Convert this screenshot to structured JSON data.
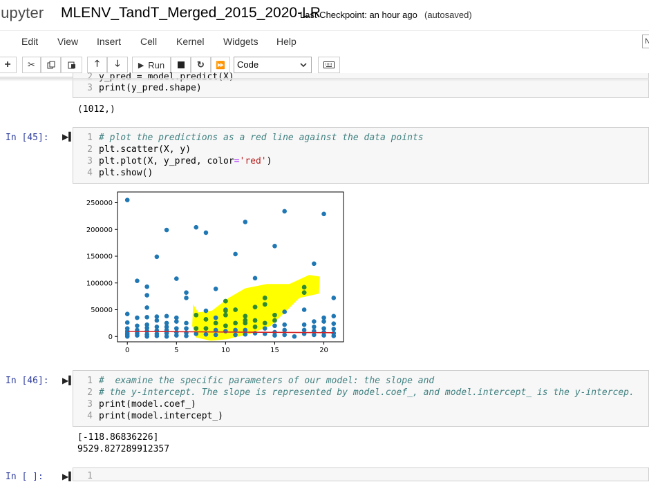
{
  "header": {
    "logo": "jupyter",
    "notebook_title": "MLENV_TandT_Merged_2015_2020-LR",
    "checkpoint": "Last Checkpoint: an hour ago",
    "autosave": "(autosaved)"
  },
  "menu": [
    "Edit",
    "View",
    "Insert",
    "Cell",
    "Kernel",
    "Widgets",
    "Help"
  ],
  "kernel_indicator": "N",
  "toolbar": {
    "run_label": "Run",
    "cell_type": "Code",
    "icons": [
      "plus-icon",
      "cut-icon",
      "copy-icon",
      "paste-icon",
      "arrow-up-icon",
      "arrow-down-icon",
      "run-icon",
      "stop-icon",
      "restart-icon",
      "fast-forward-icon",
      "chevron-down-icon",
      "keyboard-icon"
    ]
  },
  "cells": {
    "prev": {
      "line2_num": "2",
      "line2": "y_pred = model.predict(X)",
      "line3_num": "3",
      "line3": "print(y_pred.shape)",
      "output": "(1012,)"
    },
    "c45": {
      "prompt": "In [45]:",
      "lines": [
        {
          "n": "1",
          "text": "# plot the predictions as a red line against the data points"
        },
        {
          "n": "2",
          "text": "plt.scatter(X, y)"
        },
        {
          "n": "3",
          "text": "plt.plot(X, y_pred, color='red')"
        },
        {
          "n": "4",
          "text": "plt.show()"
        }
      ]
    },
    "c46": {
      "prompt": "In [46]:",
      "lines": [
        {
          "n": "1",
          "text": "#  examine the specific parameters of our model: the slope and"
        },
        {
          "n": "2",
          "text": "# the y-intercept. The slope is represented by model.coef_, and model.intercept_ is the y-intercep."
        },
        {
          "n": "3",
          "text": "print(model.coef_)"
        },
        {
          "n": "4",
          "text": "print(model.intercept_)"
        }
      ],
      "output_line1": "[-118.86836226]",
      "output_line2": "9529.827289912357"
    },
    "next": {
      "prompt": "In [ ]:",
      "line1": "1"
    }
  },
  "chart_data": {
    "type": "scatter",
    "title": "",
    "xlabel": "",
    "ylabel": "",
    "xlim": [
      -1,
      22
    ],
    "ylim": [
      -10000,
      270000
    ],
    "x_ticks": [
      0,
      5,
      10,
      15,
      20
    ],
    "y_ticks": [
      0,
      50000,
      100000,
      150000,
      200000,
      250000
    ],
    "y_tick_labels": [
      "0",
      "50000",
      "100000",
      "150000",
      "200000",
      "250000"
    ],
    "x_tick_labels": [
      "0",
      "5",
      "10",
      "15",
      "20"
    ],
    "scatter_color": "#1f77b4",
    "highlight_color": "#ffff00",
    "highlight_point_color": "#2e8b2e",
    "line_color": "#d62728",
    "scatter_points": [
      [
        0,
        255000
      ],
      [
        0,
        42000
      ],
      [
        0,
        26000
      ],
      [
        0,
        15000
      ],
      [
        0,
        10000
      ],
      [
        0,
        6000
      ],
      [
        0,
        3000
      ],
      [
        0,
        0
      ],
      [
        1,
        104000
      ],
      [
        1,
        35000
      ],
      [
        1,
        20000
      ],
      [
        1,
        12000
      ],
      [
        1,
        6000
      ],
      [
        1,
        2000
      ],
      [
        2,
        93000
      ],
      [
        2,
        77000
      ],
      [
        2,
        54000
      ],
      [
        2,
        36000
      ],
      [
        2,
        22000
      ],
      [
        2,
        16000
      ],
      [
        2,
        10000
      ],
      [
        2,
        4000
      ],
      [
        2,
        0
      ],
      [
        3,
        149000
      ],
      [
        3,
        37000
      ],
      [
        3,
        30000
      ],
      [
        3,
        18000
      ],
      [
        3,
        11000
      ],
      [
        3,
        5000
      ],
      [
        3,
        1000
      ],
      [
        4,
        199000
      ],
      [
        4,
        38000
      ],
      [
        4,
        25000
      ],
      [
        4,
        18000
      ],
      [
        4,
        12000
      ],
      [
        4,
        6000
      ],
      [
        4,
        0
      ],
      [
        5,
        108000
      ],
      [
        5,
        35000
      ],
      [
        5,
        28000
      ],
      [
        5,
        15000
      ],
      [
        5,
        8000
      ],
      [
        5,
        2000
      ],
      [
        6,
        82000
      ],
      [
        6,
        72000
      ],
      [
        6,
        25000
      ],
      [
        6,
        15000
      ],
      [
        6,
        7000
      ],
      [
        6,
        1000
      ],
      [
        7,
        204000
      ],
      [
        7,
        40000
      ],
      [
        7,
        15000
      ],
      [
        7,
        5000
      ],
      [
        8,
        194000
      ],
      [
        8,
        48000
      ],
      [
        8,
        32000
      ],
      [
        8,
        15000
      ],
      [
        8,
        4000
      ],
      [
        9,
        89000
      ],
      [
        9,
        35000
      ],
      [
        9,
        25000
      ],
      [
        9,
        12000
      ],
      [
        9,
        3000
      ],
      [
        10,
        66000
      ],
      [
        10,
        50000
      ],
      [
        10,
        40000
      ],
      [
        10,
        20000
      ],
      [
        10,
        10000
      ],
      [
        11,
        154000
      ],
      [
        11,
        50000
      ],
      [
        11,
        25000
      ],
      [
        11,
        12000
      ],
      [
        11,
        3000
      ],
      [
        12,
        214000
      ],
      [
        12,
        38000
      ],
      [
        12,
        30000
      ],
      [
        12,
        25000
      ],
      [
        12,
        12000
      ],
      [
        12,
        4000
      ],
      [
        13,
        109000
      ],
      [
        13,
        55000
      ],
      [
        13,
        30000
      ],
      [
        13,
        18000
      ],
      [
        13,
        6000
      ],
      [
        14,
        72000
      ],
      [
        14,
        60000
      ],
      [
        14,
        25000
      ],
      [
        14,
        15000
      ],
      [
        14,
        5000
      ],
      [
        15,
        169000
      ],
      [
        15,
        40000
      ],
      [
        15,
        30000
      ],
      [
        15,
        20000
      ],
      [
        15,
        8000
      ],
      [
        15,
        2000
      ],
      [
        16,
        234000
      ],
      [
        16,
        46000
      ],
      [
        16,
        22000
      ],
      [
        16,
        12000
      ],
      [
        16,
        3000
      ],
      [
        17,
        0
      ],
      [
        18,
        92000
      ],
      [
        18,
        82000
      ],
      [
        18,
        50000
      ],
      [
        18,
        22000
      ],
      [
        18,
        12000
      ],
      [
        18,
        5000
      ],
      [
        19,
        136000
      ],
      [
        19,
        28000
      ],
      [
        19,
        18000
      ],
      [
        19,
        10000
      ],
      [
        19,
        3000
      ],
      [
        20,
        229000
      ],
      [
        20,
        35000
      ],
      [
        20,
        28000
      ],
      [
        20,
        15000
      ],
      [
        20,
        8000
      ],
      [
        20,
        2000
      ],
      [
        21,
        72000
      ],
      [
        21,
        38000
      ],
      [
        21,
        24000
      ],
      [
        21,
        14000
      ],
      [
        21,
        6000
      ],
      [
        21,
        1000
      ]
    ],
    "highlighted_points": [
      [
        7,
        40000
      ],
      [
        7,
        15000
      ],
      [
        8,
        32000
      ],
      [
        8,
        15000
      ],
      [
        9,
        25000
      ],
      [
        10,
        66000
      ],
      [
        10,
        48000
      ],
      [
        10,
        40000
      ],
      [
        10,
        20000
      ],
      [
        11,
        50000
      ],
      [
        11,
        25000
      ],
      [
        12,
        38000
      ],
      [
        12,
        30000
      ],
      [
        12,
        25000
      ],
      [
        13,
        55000
      ],
      [
        13,
        30000
      ],
      [
        13,
        18000
      ],
      [
        14,
        72000
      ],
      [
        14,
        60000
      ],
      [
        14,
        25000
      ],
      [
        15,
        40000
      ],
      [
        15,
        30000
      ],
      [
        18,
        92000
      ],
      [
        18,
        82000
      ]
    ],
    "regression_line": {
      "x": [
        0,
        21
      ],
      "y": [
        9530,
        7033
      ]
    }
  }
}
